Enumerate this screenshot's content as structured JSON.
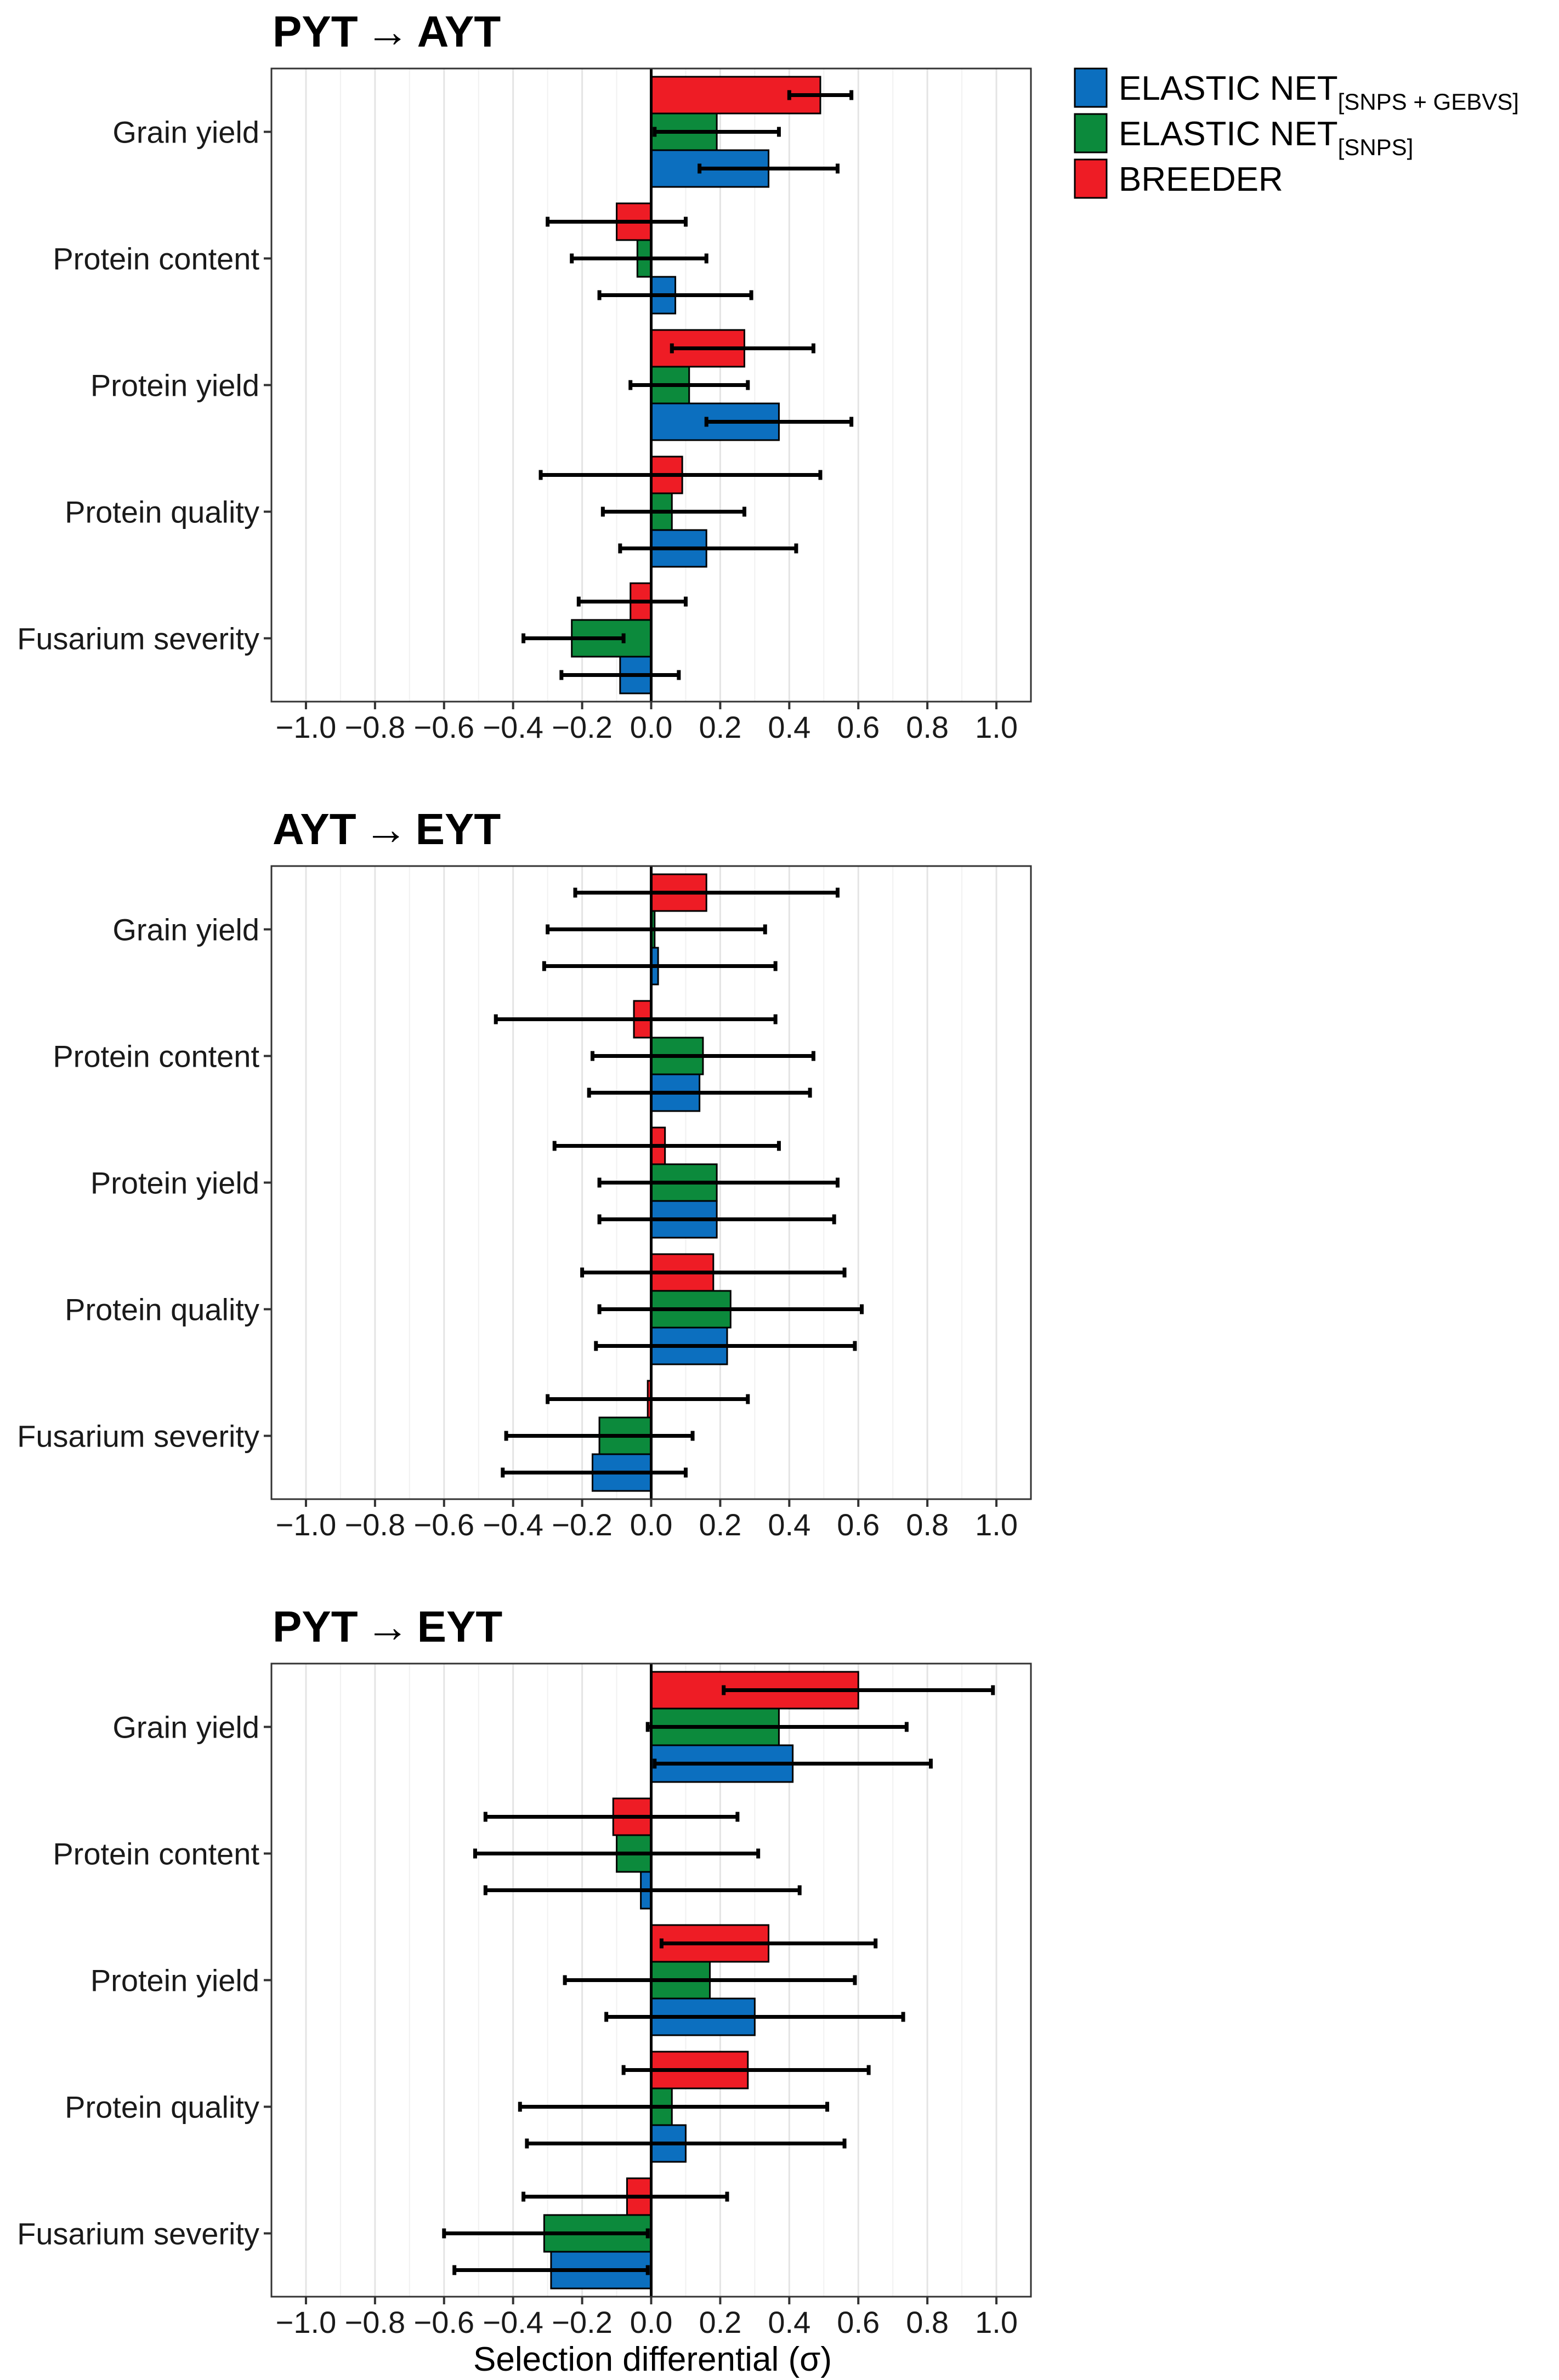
{
  "chart_data": [
    {
      "type": "bar",
      "orientation": "horizontal",
      "title_from": "PYT",
      "title_arrow": "→",
      "title_to": "AYT",
      "categories": [
        "Grain yield",
        "Protein content",
        "Protein yield",
        "Protein quality",
        "Fusarium severity"
      ],
      "xlim": [
        -1.1,
        1.1
      ],
      "xticks": [
        "−1.0",
        "−0.8",
        "−0.6",
        "−0.4",
        "−0.2",
        "0.0",
        "0.2",
        "0.4",
        "0.6",
        "0.8",
        "1.0"
      ],
      "series": [
        {
          "name": "BREEDER",
          "color": "#ee1c25",
          "values": [
            0.49,
            -0.1,
            0.27,
            0.09,
            -0.06
          ],
          "ci_low": [
            0.4,
            -0.3,
            0.06,
            -0.32,
            -0.21
          ],
          "ci_high": [
            0.58,
            0.1,
            0.47,
            0.49,
            0.1
          ]
        },
        {
          "name": "ELASTIC NET[SNPS]",
          "color": "#0c8a3c",
          "values": [
            0.19,
            -0.04,
            0.11,
            0.06,
            -0.23
          ],
          "ci_low": [
            0.01,
            -0.23,
            -0.06,
            -0.14,
            -0.37
          ],
          "ci_high": [
            0.37,
            0.16,
            0.28,
            0.27,
            -0.08
          ]
        },
        {
          "name": "ELASTIC NET[SNPS + GEBVS]",
          "color": "#0c6fbf",
          "values": [
            0.34,
            0.07,
            0.37,
            0.16,
            -0.09
          ],
          "ci_low": [
            0.14,
            -0.15,
            0.16,
            -0.09,
            -0.26
          ],
          "ci_high": [
            0.54,
            0.29,
            0.58,
            0.42,
            0.08
          ]
        }
      ]
    },
    {
      "type": "bar",
      "orientation": "horizontal",
      "title_from": "AYT",
      "title_arrow": "→",
      "title_to": "EYT",
      "categories": [
        "Grain yield",
        "Protein content",
        "Protein yield",
        "Protein quality",
        "Fusarium severity"
      ],
      "xlim": [
        -1.1,
        1.1
      ],
      "xticks": [
        "−1.0",
        "−0.8",
        "−0.6",
        "−0.4",
        "−0.2",
        "0.0",
        "0.2",
        "0.4",
        "0.6",
        "0.8",
        "1.0"
      ],
      "series": [
        {
          "name": "BREEDER",
          "color": "#ee1c25",
          "values": [
            0.16,
            -0.05,
            0.04,
            0.18,
            -0.01
          ],
          "ci_low": [
            -0.22,
            -0.45,
            -0.28,
            -0.2,
            -0.3
          ],
          "ci_high": [
            0.54,
            0.36,
            0.37,
            0.56,
            0.28
          ]
        },
        {
          "name": "ELASTIC NET[SNPS]",
          "color": "#0c8a3c",
          "values": [
            0.01,
            0.15,
            0.19,
            0.23,
            -0.15
          ],
          "ci_low": [
            -0.3,
            -0.17,
            -0.15,
            -0.15,
            -0.42
          ],
          "ci_high": [
            0.33,
            0.47,
            0.54,
            0.61,
            0.12
          ]
        },
        {
          "name": "ELASTIC NET[SNPS + GEBVS]",
          "color": "#0c6fbf",
          "values": [
            0.02,
            0.14,
            0.19,
            0.22,
            -0.17
          ],
          "ci_low": [
            -0.31,
            -0.18,
            -0.15,
            -0.16,
            -0.43
          ],
          "ci_high": [
            0.36,
            0.46,
            0.53,
            0.59,
            0.1
          ]
        }
      ]
    },
    {
      "type": "bar",
      "orientation": "horizontal",
      "title_from": "PYT",
      "title_arrow": "→",
      "title_to": "EYT",
      "categories": [
        "Grain yield",
        "Protein content",
        "Protein yield",
        "Protein quality",
        "Fusarium severity"
      ],
      "xlim": [
        -1.1,
        1.1
      ],
      "xticks": [
        "−1.0",
        "−0.8",
        "−0.6",
        "−0.4",
        "−0.2",
        "0.0",
        "0.2",
        "0.4",
        "0.6",
        "0.8",
        "1.0"
      ],
      "xlabel": "Selection differential (σ)",
      "series": [
        {
          "name": "BREEDER",
          "color": "#ee1c25",
          "values": [
            0.6,
            -0.11,
            0.34,
            0.28,
            -0.07
          ],
          "ci_low": [
            0.21,
            -0.48,
            0.03,
            -0.08,
            -0.37
          ],
          "ci_high": [
            0.99,
            0.25,
            0.65,
            0.63,
            0.22
          ]
        },
        {
          "name": "ELASTIC NET[SNPS]",
          "color": "#0c8a3c",
          "values": [
            0.37,
            -0.1,
            0.17,
            0.06,
            -0.31
          ],
          "ci_low": [
            -0.01,
            -0.51,
            -0.25,
            -0.38,
            -0.6
          ],
          "ci_high": [
            0.74,
            0.31,
            0.59,
            0.51,
            -0.01
          ]
        },
        {
          "name": "ELASTIC NET[SNPS + GEBVS]",
          "color": "#0c6fbf",
          "values": [
            0.41,
            -0.03,
            0.3,
            0.1,
            -0.29
          ],
          "ci_low": [
            0.01,
            -0.48,
            -0.13,
            -0.36,
            -0.57
          ],
          "ci_high": [
            0.81,
            0.43,
            0.73,
            0.56,
            -0.01
          ]
        }
      ]
    }
  ],
  "legend": [
    {
      "base": "ELASTIC NET",
      "sub": "[SNPS + GEBVS]",
      "color": "#0c6fbf"
    },
    {
      "base": "ELASTIC NET",
      "sub": "[SNPS]",
      "color": "#0c8a3c"
    },
    {
      "base": "BREEDER",
      "sub": "",
      "color": "#ee1c25"
    }
  ]
}
